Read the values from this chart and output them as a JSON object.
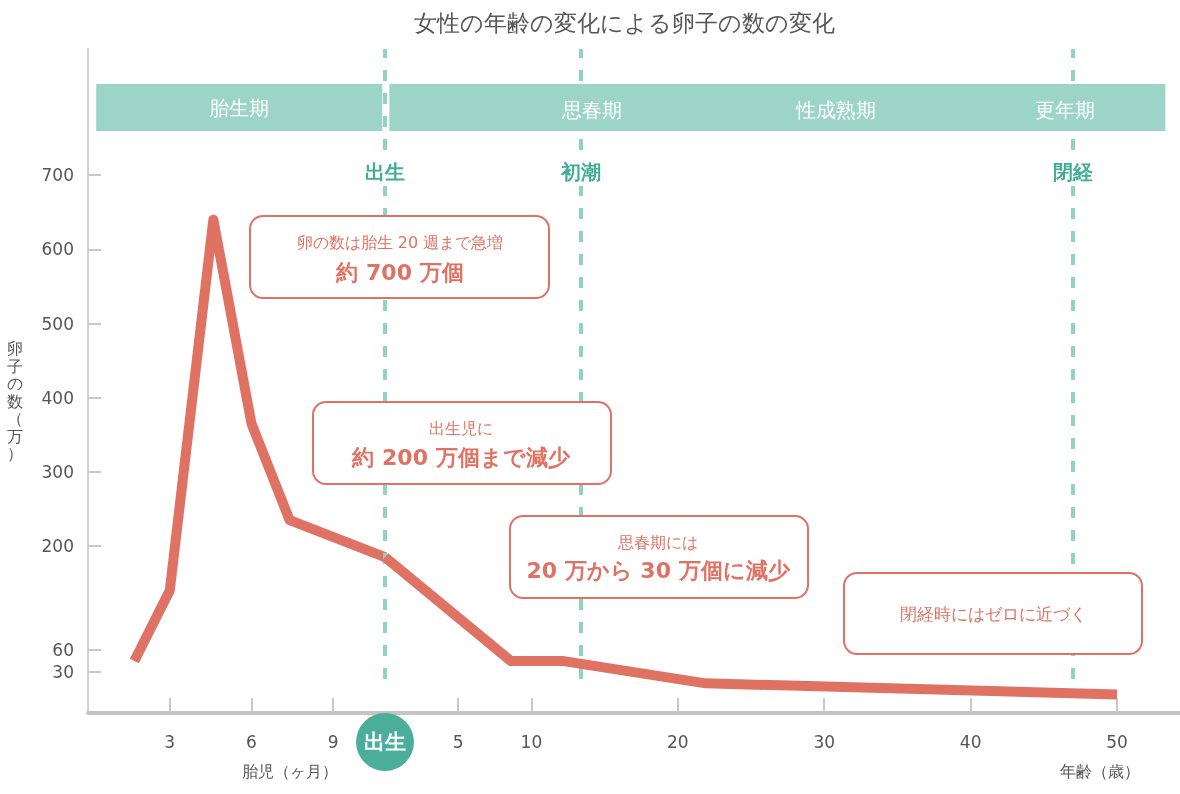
{
  "chart_data": [
    {
      "type": "line",
      "xlabel": "胎児（ヶ月）",
      "ylabel": "卵子の数（万）",
      "x": [
        1.7,
        3.0,
        4.6,
        6.0,
        7.4,
        10.9
      ],
      "values": [
        45,
        140,
        640,
        365,
        235,
        185
      ],
      "color": "#e07264",
      "xlim": [
        0,
        10.9
      ],
      "xticks": [
        3,
        6,
        9
      ],
      "ylim": [
        -25,
        870
      ],
      "yticks": [
        30,
        60,
        200,
        300,
        400,
        500,
        600,
        700
      ],
      "bands": [
        {
          "axis": "x",
          "from": 0.3,
          "to": 10.8,
          "label": "胎生期",
          "color": "#9cd4c7"
        }
      ],
      "grid": false,
      "marker": "none",
      "line_style": "solid"
    },
    {
      "type": "line",
      "title": "女性の年齢の変化による卵子の数の変化",
      "xlabel": "年齢（歳）",
      "x": [
        0,
        8.6,
        12.2,
        21.9,
        50
      ],
      "values": [
        185,
        45,
        45,
        15,
        0
      ],
      "color": "#e07264",
      "xlim": [
        0,
        54.3
      ],
      "xticks": [
        {
          "value": 0,
          "label": "出生"
        },
        5,
        10,
        20,
        30,
        40,
        50
      ],
      "ylim": [
        -25,
        870
      ],
      "tick_labels": "x",
      "ref_lines": [
        {
          "axis": "x",
          "value": 0,
          "label": "出生",
          "color": "#8fd4c2",
          "line_style": "dashed"
        },
        {
          "axis": "x",
          "value": 13.4,
          "label": "初潮",
          "color": "#8fd4c2",
          "line_style": "dashed"
        },
        {
          "axis": "x",
          "value": 47.0,
          "label": "閉経",
          "color": "#8fd4c2",
          "line_style": "dashed"
        }
      ],
      "bands": [
        {
          "axis": "x",
          "from": 0.3,
          "to": 53.3,
          "color": "#9cd4c7"
        }
      ],
      "annotations": [
        "思春期",
        "性成熟期",
        "更年期",
        "卵の数は胎生 20 週まで急増",
        "約 700 万個",
        "出生児に",
        "約 200 万個まで減少",
        "思春期には",
        "20 万から 30 万個に減少",
        "閉経時にはゼロに近づく"
      ],
      "grid": false,
      "marker": "none",
      "line_style": "solid"
    }
  ]
}
